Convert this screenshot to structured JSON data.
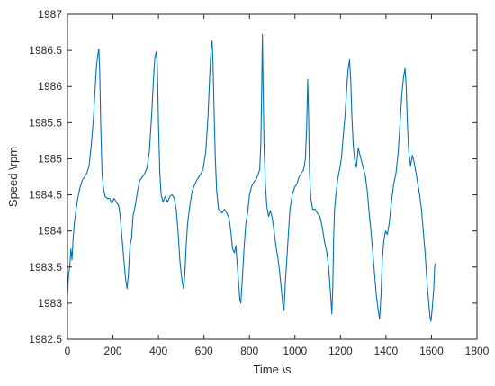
{
  "chart_data": {
    "type": "line",
    "xlabel": "Time \\s",
    "ylabel": "Speed \\rpm",
    "xlim": [
      0,
      1800
    ],
    "ylim": [
      1982.5,
      1987
    ],
    "grid": false,
    "box": true,
    "line_color": "#0072BD",
    "axis_color": "#262626",
    "x_ticks": [
      "0",
      "200",
      "400",
      "600",
      "800",
      "1000",
      "1200",
      "1400",
      "1600",
      "1800"
    ],
    "y_ticks": [
      "1982.5",
      "1983",
      "1983.5",
      "1984",
      "1984.5",
      "1985",
      "1985.5",
      "1986",
      "1986.5",
      "1987"
    ],
    "series": [
      {
        "points": [
          [
            0,
            1983.1
          ],
          [
            5,
            1983.4
          ],
          [
            10,
            1983.5
          ],
          [
            15,
            1983.75
          ],
          [
            20,
            1983.6
          ],
          [
            25,
            1983.9
          ],
          [
            30,
            1984.1
          ],
          [
            38,
            1984.3
          ],
          [
            45,
            1984.45
          ],
          [
            55,
            1984.6
          ],
          [
            65,
            1984.7
          ],
          [
            75,
            1984.75
          ],
          [
            85,
            1984.8
          ],
          [
            95,
            1984.9
          ],
          [
            105,
            1985.2
          ],
          [
            115,
            1985.6
          ],
          [
            122,
            1986.0
          ],
          [
            128,
            1986.3
          ],
          [
            134,
            1986.45
          ],
          [
            138,
            1986.52
          ],
          [
            142,
            1986.2
          ],
          [
            146,
            1985.5
          ],
          [
            152,
            1984.8
          ],
          [
            158,
            1984.6
          ],
          [
            165,
            1984.48
          ],
          [
            175,
            1984.45
          ],
          [
            185,
            1984.45
          ],
          [
            195,
            1984.38
          ],
          [
            205,
            1984.45
          ],
          [
            215,
            1984.4
          ],
          [
            225,
            1984.35
          ],
          [
            232,
            1984.2
          ],
          [
            240,
            1983.9
          ],
          [
            248,
            1983.6
          ],
          [
            255,
            1983.35
          ],
          [
            262,
            1983.2
          ],
          [
            268,
            1983.4
          ],
          [
            275,
            1983.8
          ],
          [
            282,
            1983.9
          ],
          [
            288,
            1984.2
          ],
          [
            298,
            1984.35
          ],
          [
            308,
            1984.55
          ],
          [
            318,
            1984.7
          ],
          [
            330,
            1984.75
          ],
          [
            340,
            1984.8
          ],
          [
            350,
            1984.88
          ],
          [
            360,
            1985.1
          ],
          [
            370,
            1985.6
          ],
          [
            378,
            1986.1
          ],
          [
            384,
            1986.4
          ],
          [
            390,
            1986.48
          ],
          [
            395,
            1986.3
          ],
          [
            400,
            1985.5
          ],
          [
            406,
            1984.8
          ],
          [
            412,
            1984.5
          ],
          [
            420,
            1984.4
          ],
          [
            430,
            1984.48
          ],
          [
            440,
            1984.4
          ],
          [
            450,
            1984.48
          ],
          [
            460,
            1984.5
          ],
          [
            470,
            1984.45
          ],
          [
            478,
            1984.3
          ],
          [
            486,
            1984.0
          ],
          [
            494,
            1983.6
          ],
          [
            502,
            1983.35
          ],
          [
            510,
            1983.2
          ],
          [
            516,
            1983.4
          ],
          [
            522,
            1983.8
          ],
          [
            528,
            1984.1
          ],
          [
            538,
            1984.35
          ],
          [
            548,
            1984.55
          ],
          [
            560,
            1984.65
          ],
          [
            572,
            1984.72
          ],
          [
            584,
            1984.78
          ],
          [
            596,
            1984.85
          ],
          [
            608,
            1985.1
          ],
          [
            618,
            1985.6
          ],
          [
            626,
            1986.2
          ],
          [
            632,
            1986.55
          ],
          [
            636,
            1986.63
          ],
          [
            640,
            1986.3
          ],
          [
            645,
            1985.6
          ],
          [
            650,
            1985.0
          ],
          [
            656,
            1984.55
          ],
          [
            664,
            1984.3
          ],
          [
            672,
            1984.28
          ],
          [
            680,
            1984.25
          ],
          [
            690,
            1984.3
          ],
          [
            700,
            1984.25
          ],
          [
            710,
            1984.18
          ],
          [
            718,
            1984.0
          ],
          [
            726,
            1983.75
          ],
          [
            734,
            1983.7
          ],
          [
            740,
            1983.8
          ],
          [
            746,
            1983.55
          ],
          [
            752,
            1983.3
          ],
          [
            758,
            1983.05
          ],
          [
            762,
            1983.0
          ],
          [
            768,
            1983.3
          ],
          [
            776,
            1983.75
          ],
          [
            784,
            1984.1
          ],
          [
            792,
            1984.25
          ],
          [
            800,
            1984.5
          ],
          [
            810,
            1984.62
          ],
          [
            820,
            1984.68
          ],
          [
            830,
            1984.72
          ],
          [
            838,
            1984.78
          ],
          [
            845,
            1984.85
          ],
          [
            850,
            1985.2
          ],
          [
            854,
            1986.0
          ],
          [
            857,
            1986.72
          ],
          [
            860,
            1986.0
          ],
          [
            864,
            1985.2
          ],
          [
            870,
            1984.65
          ],
          [
            876,
            1984.35
          ],
          [
            884,
            1984.2
          ],
          [
            892,
            1984.28
          ],
          [
            900,
            1984.18
          ],
          [
            908,
            1984.0
          ],
          [
            916,
            1983.8
          ],
          [
            924,
            1983.65
          ],
          [
            932,
            1983.45
          ],
          [
            940,
            1983.2
          ],
          [
            946,
            1983.0
          ],
          [
            952,
            1982.9
          ],
          [
            958,
            1983.3
          ],
          [
            966,
            1983.7
          ],
          [
            972,
            1984.0
          ],
          [
            978,
            1984.3
          ],
          [
            988,
            1984.5
          ],
          [
            998,
            1984.6
          ],
          [
            1008,
            1984.65
          ],
          [
            1018,
            1984.75
          ],
          [
            1028,
            1984.8
          ],
          [
            1038,
            1984.85
          ],
          [
            1046,
            1985.0
          ],
          [
            1052,
            1985.5
          ],
          [
            1056,
            1986.1
          ],
          [
            1060,
            1985.6
          ],
          [
            1064,
            1984.8
          ],
          [
            1070,
            1984.45
          ],
          [
            1078,
            1984.3
          ],
          [
            1088,
            1984.3
          ],
          [
            1098,
            1984.25
          ],
          [
            1110,
            1984.2
          ],
          [
            1120,
            1984.05
          ],
          [
            1130,
            1983.85
          ],
          [
            1140,
            1983.7
          ],
          [
            1148,
            1983.5
          ],
          [
            1156,
            1983.15
          ],
          [
            1162,
            1982.85
          ],
          [
            1166,
            1983.2
          ],
          [
            1170,
            1983.9
          ],
          [
            1174,
            1984.3
          ],
          [
            1180,
            1984.5
          ],
          [
            1188,
            1984.72
          ],
          [
            1196,
            1984.85
          ],
          [
            1204,
            1985.0
          ],
          [
            1212,
            1985.3
          ],
          [
            1220,
            1985.6
          ],
          [
            1228,
            1986.0
          ],
          [
            1234,
            1986.25
          ],
          [
            1240,
            1986.37
          ],
          [
            1245,
            1986.1
          ],
          [
            1250,
            1985.6
          ],
          [
            1256,
            1985.2
          ],
          [
            1262,
            1985.0
          ],
          [
            1270,
            1984.88
          ],
          [
            1278,
            1985.15
          ],
          [
            1286,
            1985.05
          ],
          [
            1294,
            1984.95
          ],
          [
            1302,
            1984.85
          ],
          [
            1310,
            1984.75
          ],
          [
            1318,
            1984.55
          ],
          [
            1326,
            1984.25
          ],
          [
            1334,
            1984.0
          ],
          [
            1342,
            1983.7
          ],
          [
            1350,
            1983.4
          ],
          [
            1358,
            1983.1
          ],
          [
            1366,
            1982.9
          ],
          [
            1372,
            1982.78
          ],
          [
            1378,
            1983.1
          ],
          [
            1384,
            1983.6
          ],
          [
            1390,
            1983.85
          ],
          [
            1398,
            1984.0
          ],
          [
            1406,
            1983.95
          ],
          [
            1414,
            1984.1
          ],
          [
            1424,
            1984.4
          ],
          [
            1434,
            1984.65
          ],
          [
            1444,
            1984.8
          ],
          [
            1454,
            1985.1
          ],
          [
            1462,
            1985.5
          ],
          [
            1470,
            1985.9
          ],
          [
            1478,
            1986.15
          ],
          [
            1484,
            1986.25
          ],
          [
            1489,
            1986.0
          ],
          [
            1494,
            1985.5
          ],
          [
            1500,
            1985.1
          ],
          [
            1508,
            1984.9
          ],
          [
            1516,
            1985.05
          ],
          [
            1524,
            1984.95
          ],
          [
            1532,
            1984.8
          ],
          [
            1540,
            1984.65
          ],
          [
            1548,
            1984.5
          ],
          [
            1556,
            1984.3
          ],
          [
            1564,
            1984.0
          ],
          [
            1572,
            1983.7
          ],
          [
            1580,
            1983.3
          ],
          [
            1588,
            1983.0
          ],
          [
            1594,
            1982.8
          ],
          [
            1598,
            1982.75
          ],
          [
            1604,
            1982.95
          ],
          [
            1610,
            1983.2
          ],
          [
            1614,
            1983.5
          ],
          [
            1618,
            1983.55
          ]
        ]
      }
    ]
  }
}
